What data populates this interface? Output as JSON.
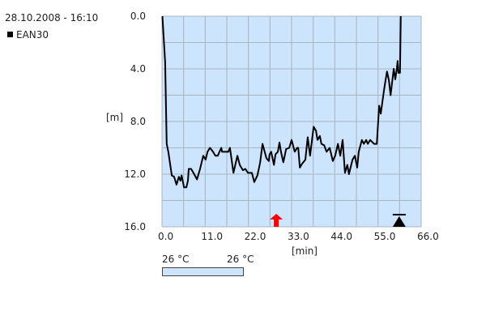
{
  "header": {
    "datetime": "28.10.2008 - 16:10"
  },
  "legend": [
    {
      "name": "EAN30",
      "color": "#000000"
    }
  ],
  "color_scale": {
    "min_label": "26 °C",
    "max_label": "26 °C",
    "color": "#cce4fc"
  },
  "chart_data": {
    "type": "line",
    "xlabel": "[min]",
    "ylabel": "[m]",
    "xlim": [
      0,
      66
    ],
    "ylim": [
      0,
      16
    ],
    "y_inverted": true,
    "grid": true,
    "background": "#cce4fc",
    "x_ticks": [
      "0.0",
      "11.0",
      "22.0",
      "33.0",
      "44.0",
      "55.0",
      "66.0"
    ],
    "y_ticks": [
      "0.0",
      "4.0",
      "8.0",
      "12.0",
      "16.0"
    ],
    "legend_position": "top-left",
    "series": [
      {
        "name": "EAN30",
        "color": "#000000",
        "points": [
          [
            0.1,
            0
          ],
          [
            0.8,
            3.5
          ],
          [
            1.2,
            9.7
          ],
          [
            1.6,
            10.3
          ],
          [
            2.5,
            12.1
          ],
          [
            3.1,
            12.2
          ],
          [
            3.7,
            12.8
          ],
          [
            4.3,
            12.2
          ],
          [
            4.7,
            12.5
          ],
          [
            5.0,
            12.1
          ],
          [
            5.6,
            13.0
          ],
          [
            6.2,
            13.0
          ],
          [
            6.6,
            12.5
          ],
          [
            6.8,
            11.6
          ],
          [
            7.4,
            11.6
          ],
          [
            8.0,
            11.9
          ],
          [
            8.9,
            12.4
          ],
          [
            9.1,
            12.2
          ],
          [
            9.7,
            11.6
          ],
          [
            10.5,
            10.6
          ],
          [
            11.1,
            10.9
          ],
          [
            11.6,
            10.3
          ],
          [
            12.2,
            10.0
          ],
          [
            13.0,
            10.3
          ],
          [
            13.6,
            10.6
          ],
          [
            14.2,
            10.6
          ],
          [
            15.1,
            10.0
          ],
          [
            15.3,
            10.3
          ],
          [
            16.9,
            10.3
          ],
          [
            17.3,
            10.0
          ],
          [
            18.2,
            11.9
          ],
          [
            19.2,
            10.6
          ],
          [
            19.8,
            11.3
          ],
          [
            20.6,
            11.7
          ],
          [
            21.2,
            11.6
          ],
          [
            21.9,
            11.9
          ],
          [
            22.9,
            11.9
          ],
          [
            23.5,
            12.6
          ],
          [
            24.3,
            12.1
          ],
          [
            25.0,
            11.1
          ],
          [
            25.6,
            9.7
          ],
          [
            26.6,
            10.8
          ],
          [
            27.2,
            11.0
          ],
          [
            27.4,
            10.5
          ],
          [
            27.8,
            10.3
          ],
          [
            28.5,
            11.3
          ],
          [
            28.9,
            10.5
          ],
          [
            29.5,
            10.3
          ],
          [
            29.9,
            9.6
          ],
          [
            30.3,
            10.3
          ],
          [
            30.9,
            11.1
          ],
          [
            31.6,
            10.1
          ],
          [
            32.4,
            10.0
          ],
          [
            33.0,
            9.4
          ],
          [
            33.8,
            10.3
          ],
          [
            34.4,
            10.0
          ],
          [
            34.7,
            10.0
          ],
          [
            35.1,
            11.5
          ],
          [
            35.7,
            11.2
          ],
          [
            36.5,
            10.9
          ],
          [
            37.1,
            9.2
          ],
          [
            37.7,
            10.6
          ],
          [
            38.6,
            8.4
          ],
          [
            39.2,
            8.7
          ],
          [
            39.6,
            9.4
          ],
          [
            40.2,
            9.1
          ],
          [
            40.6,
            9.7
          ],
          [
            41.3,
            9.8
          ],
          [
            41.9,
            10.3
          ],
          [
            42.7,
            10.0
          ],
          [
            43.5,
            11.0
          ],
          [
            44.1,
            10.6
          ],
          [
            44.8,
            9.7
          ],
          [
            45.4,
            10.6
          ],
          [
            46.0,
            9.4
          ],
          [
            46.6,
            11.9
          ],
          [
            47.2,
            11.3
          ],
          [
            47.6,
            12.0
          ],
          [
            48.5,
            10.9
          ],
          [
            49.1,
            10.6
          ],
          [
            49.7,
            11.5
          ],
          [
            50.1,
            10.3
          ],
          [
            50.9,
            9.4
          ],
          [
            51.4,
            9.7
          ],
          [
            52.0,
            9.4
          ],
          [
            52.4,
            9.7
          ],
          [
            53.0,
            9.4
          ],
          [
            54.0,
            9.7
          ],
          [
            54.7,
            9.7
          ],
          [
            55.3,
            6.8
          ],
          [
            55.7,
            7.4
          ],
          [
            56.5,
            5.7
          ],
          [
            56.9,
            4.9
          ],
          [
            57.3,
            4.2
          ],
          [
            57.8,
            4.9
          ],
          [
            58.2,
            6.0
          ],
          [
            59.0,
            4.0
          ],
          [
            59.4,
            4.8
          ],
          [
            59.8,
            4.0
          ],
          [
            60.0,
            3.4
          ],
          [
            60.2,
            4.3
          ],
          [
            60.6,
            4.3
          ],
          [
            60.8,
            0
          ]
        ]
      }
    ],
    "markers": [
      {
        "type": "ascent-warning-arrow",
        "x": 29.1,
        "color": "#ff0000"
      },
      {
        "type": "surface-marker",
        "x": 60.4,
        "color": "#000000"
      }
    ]
  }
}
